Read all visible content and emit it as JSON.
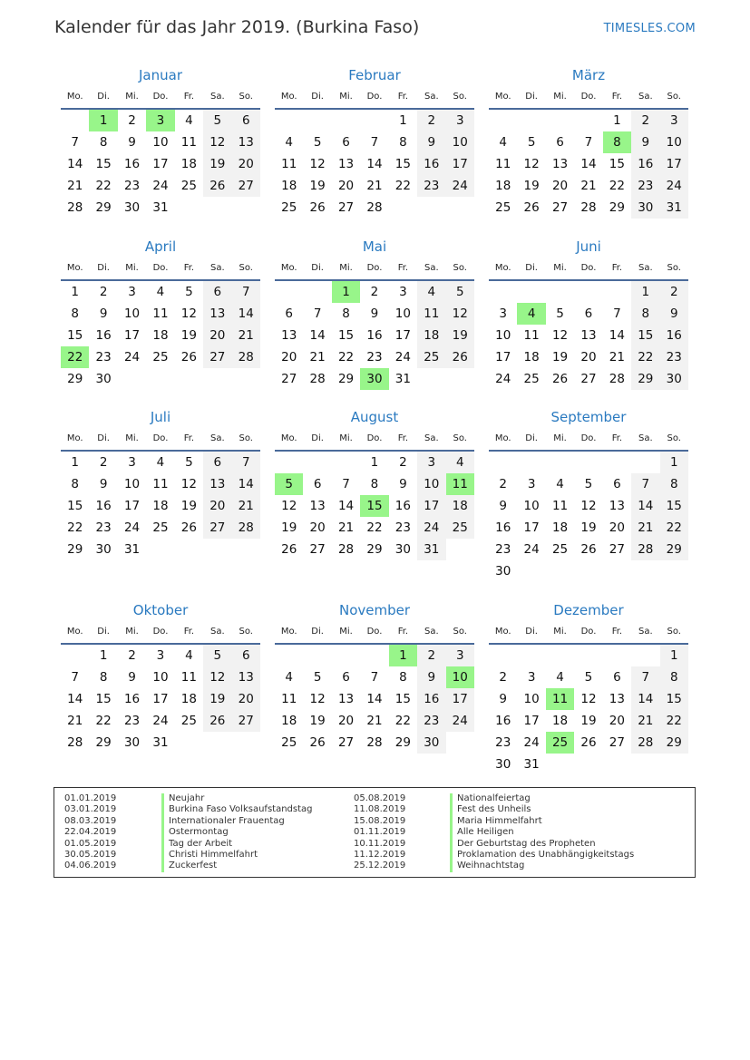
{
  "title": "Kalender für das Jahr 2019. (Burkina Faso)",
  "brand": "TIMESLES.COM",
  "holiday_color": "#98f58a",
  "weekend_color": "#f2f2f2",
  "accent_color": "#2a7ac0",
  "weekdays": [
    "Mo.",
    "Di.",
    "Mi.",
    "Do.",
    "Fr.",
    "Sa.",
    "So."
  ],
  "months": [
    {
      "name": "Januar",
      "first_weekday": 1,
      "days": 31,
      "holidays": [
        1,
        3
      ]
    },
    {
      "name": "Februar",
      "first_weekday": 4,
      "days": 28,
      "holidays": []
    },
    {
      "name": "März",
      "first_weekday": 4,
      "days": 31,
      "holidays": [
        8
      ]
    },
    {
      "name": "April",
      "first_weekday": 0,
      "days": 30,
      "holidays": [
        22
      ]
    },
    {
      "name": "Mai",
      "first_weekday": 2,
      "days": 31,
      "holidays": [
        1,
        30
      ]
    },
    {
      "name": "Juni",
      "first_weekday": 5,
      "days": 30,
      "holidays": [
        4
      ]
    },
    {
      "name": "Juli",
      "first_weekday": 0,
      "days": 31,
      "holidays": []
    },
    {
      "name": "August",
      "first_weekday": 3,
      "days": 31,
      "holidays": [
        5,
        11,
        15
      ]
    },
    {
      "name": "September",
      "first_weekday": 6,
      "days": 30,
      "holidays": []
    },
    {
      "name": "Oktober",
      "first_weekday": 1,
      "days": 31,
      "holidays": []
    },
    {
      "name": "November",
      "first_weekday": 4,
      "days": 30,
      "holidays": [
        1,
        10
      ]
    },
    {
      "name": "Dezember",
      "first_weekday": 6,
      "days": 31,
      "holidays": [
        11,
        25
      ]
    }
  ],
  "legend": [
    [
      {
        "date": "01.01.2019",
        "name": "Neujahr"
      },
      {
        "date": "03.01.2019",
        "name": "Burkina Faso Volksaufstandstag"
      },
      {
        "date": "08.03.2019",
        "name": "Internationaler Frauentag"
      },
      {
        "date": "22.04.2019",
        "name": "Ostermontag"
      },
      {
        "date": "01.05.2019",
        "name": "Tag der Arbeit"
      },
      {
        "date": "30.05.2019",
        "name": "Christi Himmelfahrt"
      },
      {
        "date": "04.06.2019",
        "name": "Zuckerfest"
      }
    ],
    [
      {
        "date": "05.08.2019",
        "name": "Nationalfeiertag"
      },
      {
        "date": "11.08.2019",
        "name": "Fest des Unheils"
      },
      {
        "date": "15.08.2019",
        "name": "Maria Himmelfahrt"
      },
      {
        "date": "01.11.2019",
        "name": "Alle Heiligen"
      },
      {
        "date": "10.11.2019",
        "name": "Der Geburtstag des Propheten"
      },
      {
        "date": "11.12.2019",
        "name": "Proklamation des Unabhängigkeitstags"
      },
      {
        "date": "25.12.2019",
        "name": "Weihnachtstag"
      }
    ]
  ]
}
